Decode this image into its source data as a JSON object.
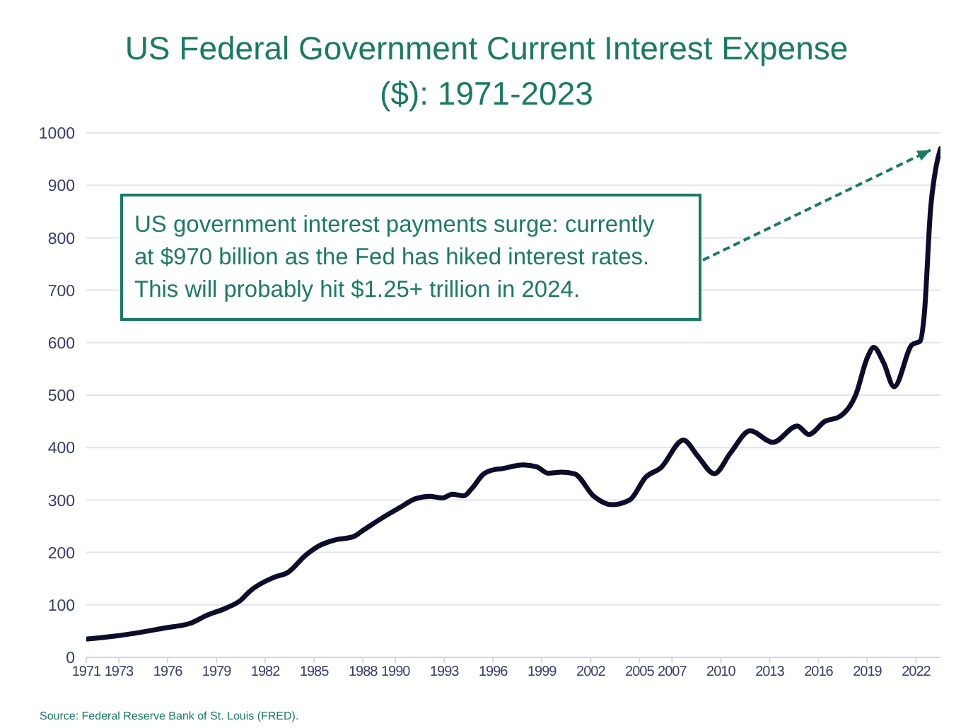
{
  "chart_data": {
    "type": "line",
    "title": "US Federal Government Current Interest Expense ($): 1971-2023",
    "x": [
      1971.06,
      1972.65,
      1974.4,
      1975.8,
      1977.4,
      1978.4,
      1979.6,
      1980.5,
      1981.05,
      1982.5,
      1983.4,
      1984.5,
      1985.4,
      1986.3,
      1987.4,
      1988.1,
      1989.2,
      1990.3,
      1991.2,
      1992.1,
      1992.9,
      1993.5,
      1994.2,
      1994.7,
      1995.4,
      1996.1,
      1996.4,
      1997.85,
      1998.7,
      1999.4,
      2000.2,
      2001.0,
      2002.2,
      2003.3,
      2004.4,
      2005.4,
      2006.3,
      2007.7,
      2008.6,
      2009.6,
      2010.6,
      2011.8,
      2013.2,
      2014.7,
      2015.4,
      2016.4,
      2017.3,
      2018.3,
      2019.0,
      2019.4,
      2020.0,
      2020.65,
      2021.75,
      2022.25,
      2022.5,
      2022.9,
      2023.2,
      2023.5
    ],
    "series": [
      {
        "color": "#0d0d2b",
        "values": [
          35,
          40,
          48,
          56,
          65,
          80,
          94,
          109,
          126,
          152,
          162,
          195,
          214,
          224,
          230,
          244,
          266,
          286,
          302,
          307,
          304,
          311,
          308,
          322,
          349,
          358,
          359,
          367,
          363,
          351,
          353,
          350,
          307,
          291,
          300,
          344,
          361,
          414,
          383,
          350,
          390,
          432,
          410,
          441,
          425,
          450,
          459,
          501,
          571,
          591,
          562,
          516,
          596,
          603,
          652,
          858,
          930,
          970
        ]
      }
    ],
    "xlim": [
      1971,
      2023.5
    ],
    "xticks": [
      1971,
      1973,
      1976,
      1979,
      1982,
      1985,
      1988,
      1990,
      1993,
      1996,
      1999,
      2002,
      2005,
      2007,
      2010,
      2013,
      2016,
      2019,
      2022
    ],
    "ylim": [
      0,
      1000
    ],
    "yticks": [
      0,
      100,
      200,
      300,
      400,
      500,
      600,
      700,
      800,
      900,
      1000
    ],
    "grid": "y",
    "legend": false,
    "marker": "none",
    "line_style": "solid",
    "annotations": [
      "US government interest payments surge: currently at $970 billion as the Fed has hiked interest rates. This will probably hit $1.25+ trillion in 2024.",
      "Source: Federal Reserve Bank of St. Louis (FRED)."
    ]
  }
}
